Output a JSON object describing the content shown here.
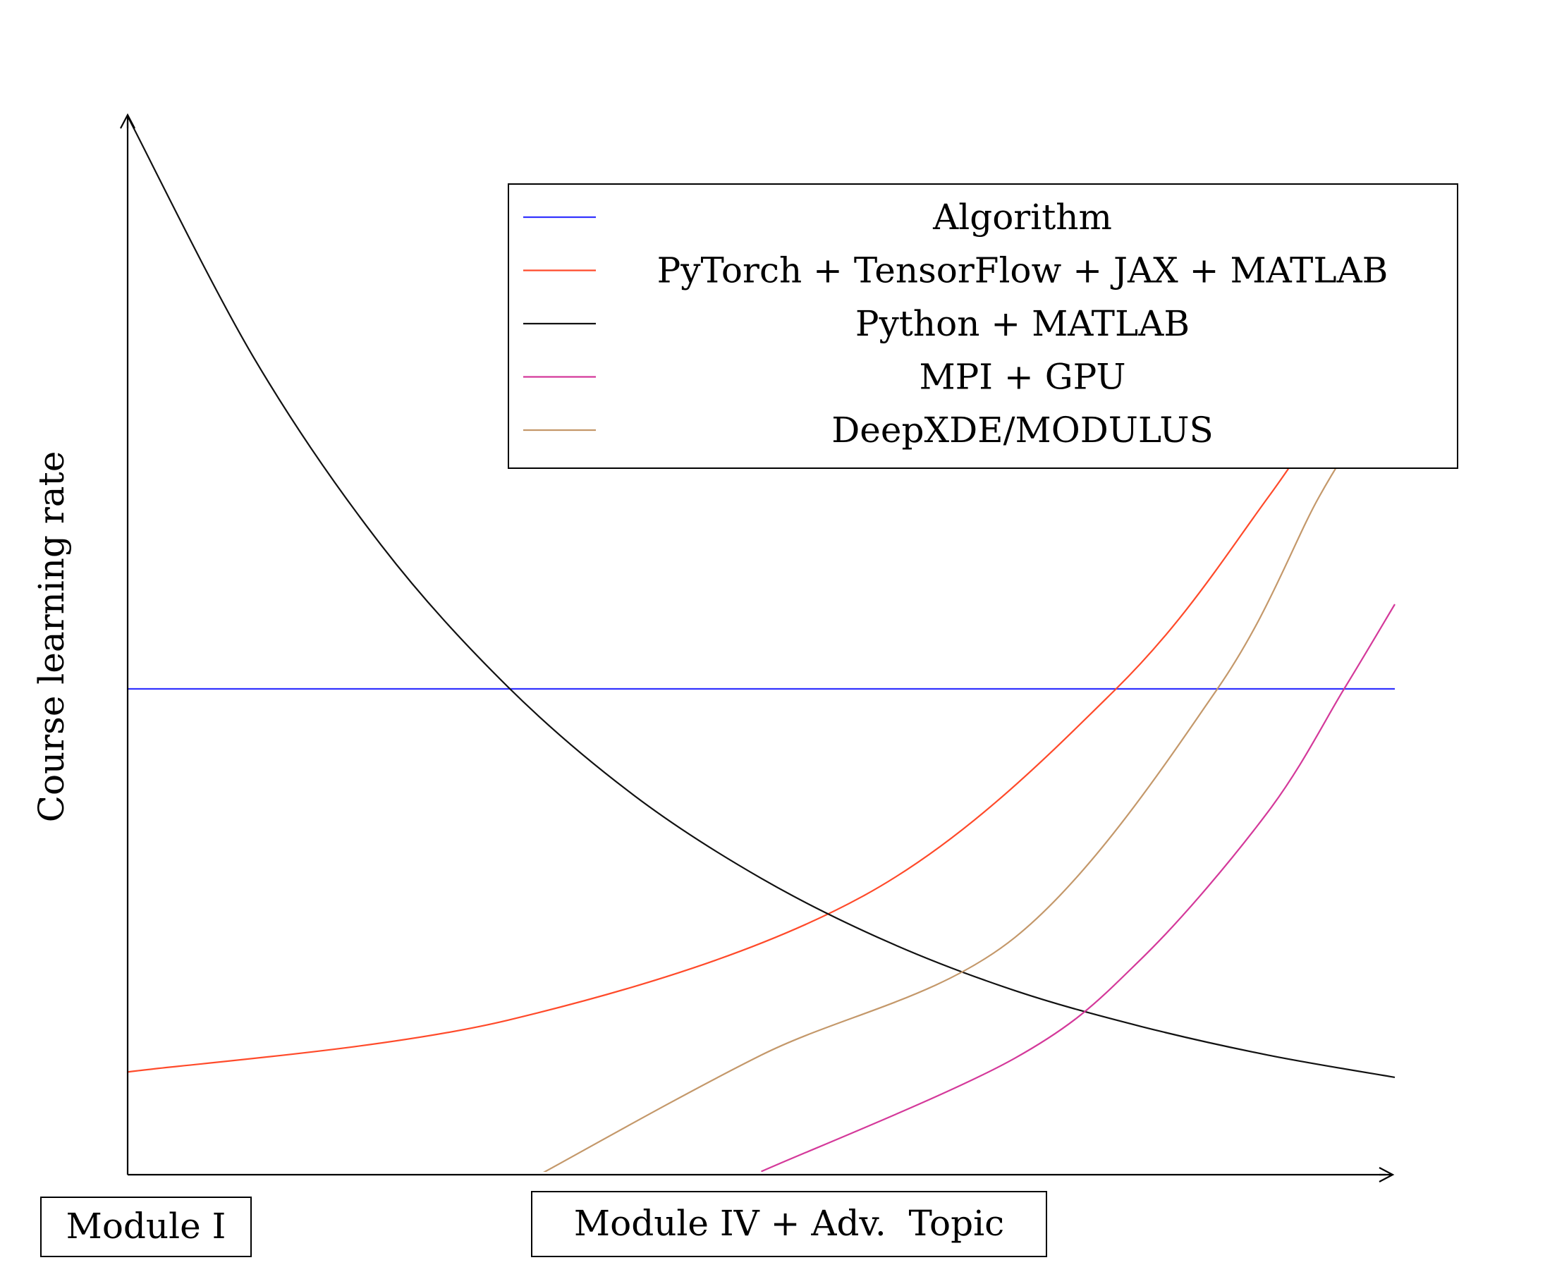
{
  "chart_data": {
    "type": "line",
    "ylabel": "Course learning rate",
    "x_labels": [
      "Module I",
      "Module IV + Adv.  Topic"
    ],
    "xlim": [
      0,
      1
    ],
    "ylim": [
      0,
      1
    ],
    "grid": false,
    "legend_position": "top-right",
    "series": [
      {
        "name": "Algorithm",
        "color": "#3333ff",
        "x": [
          0,
          0.25,
          0.5,
          0.75,
          1
        ],
        "y": [
          0.459,
          0.459,
          0.459,
          0.459,
          0.459
        ]
      },
      {
        "name": "PyTorch + TensorFlow + JAX + MATLAB",
        "color": "#ff4a2a",
        "x": [
          0,
          0.3,
          0.58,
          0.78,
          0.9,
          0.98
        ],
        "y": [
          0.097,
          0.146,
          0.263,
          0.459,
          0.64,
          0.786
        ]
      },
      {
        "name": "Python + MATLAB",
        "color": "#111111",
        "x": [
          0,
          0.1,
          0.2,
          0.3,
          0.4,
          0.5,
          0.6,
          0.7,
          0.8,
          0.9,
          1
        ],
        "y": [
          1.0,
          0.771,
          0.595,
          0.461,
          0.358,
          0.28,
          0.22,
          0.174,
          0.14,
          0.113,
          0.092
        ]
      },
      {
        "name": "MPI + GPU",
        "color": "#d4399a",
        "x": [
          0.5,
          0.7,
          0.8,
          0.9,
          0.96,
          1
        ],
        "y": [
          0.003,
          0.11,
          0.204,
          0.343,
          0.459,
          0.539
        ]
      },
      {
        "name": "DeepXDE/MODULUS",
        "color": "#c4986a",
        "x": [
          0.325,
          0.5,
          0.7,
          0.86,
          0.94,
          0.98
        ],
        "y": [
          0.0,
          0.113,
          0.224,
          0.459,
          0.64,
          0.716
        ]
      }
    ]
  }
}
